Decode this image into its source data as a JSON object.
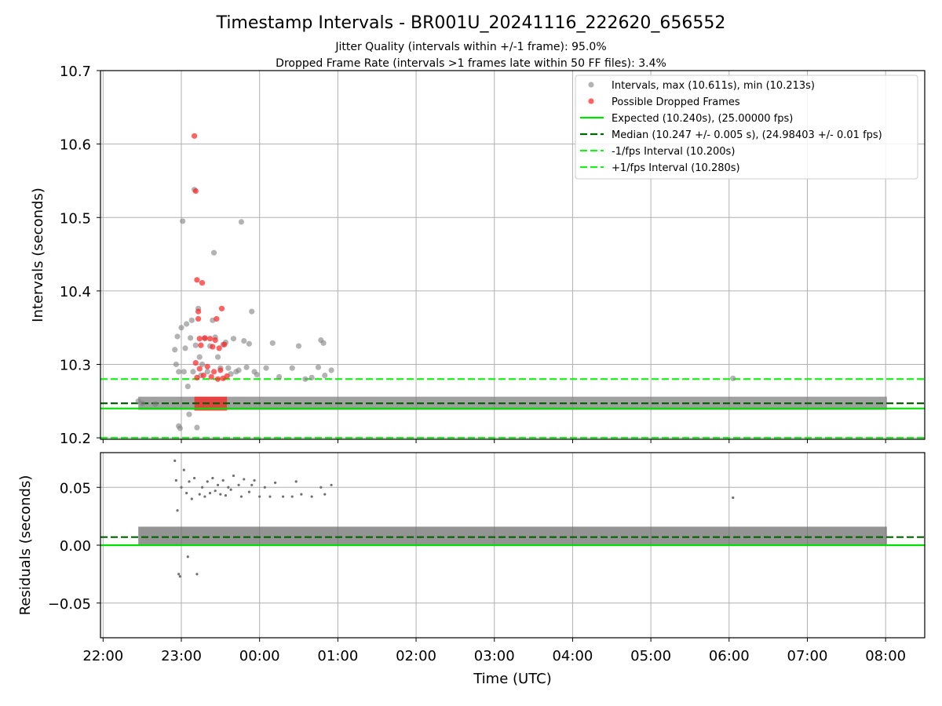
{
  "chart_data": [
    {
      "type": "scatter",
      "panel": "top",
      "title": "Timestamp Intervals - BR001U_20241116_222620_656552",
      "subtitles": [
        "Jitter Quality (intervals within +/-1 frame): 95.0%",
        "Dropped Frame Rate (intervals >1 frames late within 50 FF files): 3.4%"
      ],
      "ylabel": "Intervals (seconds)",
      "ylim": [
        10.198,
        10.7
      ],
      "xlim": [
        "21:58",
        "08:30"
      ],
      "yticks": [
        "10.2",
        "10.3",
        "10.4",
        "10.5",
        "10.6",
        "10.7"
      ],
      "grid": true,
      "legend_position": "top-right",
      "legend": [
        "Intervals, max (10.611s), min (10.213s)",
        "Possible Dropped Frames",
        "Expected (10.240s), (25.00000 fps)",
        "Median (10.247 +/- 0.005 s), (24.98403 +/- 0.01 fps)",
        "-1/fps Interval (10.200s)",
        "+1/fps Interval (10.280s)"
      ],
      "reference_lines": [
        {
          "name": "Expected",
          "y": 10.24,
          "color": "#00e000",
          "style": "solid"
        },
        {
          "name": "Median",
          "y": 10.247,
          "color": "#006400",
          "style": "dashed"
        },
        {
          "name": "-1/fps Interval",
          "y": 10.2,
          "color": "#1cf01c",
          "style": "dashed"
        },
        {
          "name": "+1/fps Interval",
          "y": 10.28,
          "color": "#1cf01c",
          "style": "dashed"
        }
      ],
      "series": [
        {
          "name": "Intervals",
          "color": "#808080",
          "band": {
            "x_start": "22:27",
            "x_end": "08:01",
            "y_low": 10.238,
            "y_high": 10.256
          },
          "points": [
            {
              "x": "22:27",
              "y": 10.25
            },
            {
              "x": "22:30",
              "y": 10.247
            },
            {
              "x": "22:40",
              "y": 10.246
            },
            {
              "x": "22:55",
              "y": 10.32
            },
            {
              "x": "22:56",
              "y": 10.3
            },
            {
              "x": "22:57",
              "y": 10.338
            },
            {
              "x": "22:58",
              "y": 10.29
            },
            {
              "x": "22:58",
              "y": 10.216
            },
            {
              "x": "22:59",
              "y": 10.213
            },
            {
              "x": "23:00",
              "y": 10.35
            },
            {
              "x": "23:01",
              "y": 10.495
            },
            {
              "x": "23:02",
              "y": 10.29
            },
            {
              "x": "23:03",
              "y": 10.322
            },
            {
              "x": "23:04",
              "y": 10.355
            },
            {
              "x": "23:05",
              "y": 10.27
            },
            {
              "x": "23:06",
              "y": 10.232
            },
            {
              "x": "23:07",
              "y": 10.336
            },
            {
              "x": "23:08",
              "y": 10.36
            },
            {
              "x": "23:09",
              "y": 10.29
            },
            {
              "x": "23:10",
              "y": 10.538
            },
            {
              "x": "23:11",
              "y": 10.326
            },
            {
              "x": "23:12",
              "y": 10.214
            },
            {
              "x": "23:13",
              "y": 10.376
            },
            {
              "x": "23:14",
              "y": 10.31
            },
            {
              "x": "23:15",
              "y": 10.285
            },
            {
              "x": "23:16",
              "y": 10.3
            },
            {
              "x": "23:18",
              "y": 10.335
            },
            {
              "x": "23:20",
              "y": 10.29
            },
            {
              "x": "23:22",
              "y": 10.325
            },
            {
              "x": "23:24",
              "y": 10.36
            },
            {
              "x": "23:25",
              "y": 10.452
            },
            {
              "x": "23:26",
              "y": 10.337
            },
            {
              "x": "23:28",
              "y": 10.31
            },
            {
              "x": "23:30",
              "y": 10.295
            },
            {
              "x": "23:32",
              "y": 10.327
            },
            {
              "x": "23:34",
              "y": 10.33
            },
            {
              "x": "23:36",
              "y": 10.295
            },
            {
              "x": "23:38",
              "y": 10.287
            },
            {
              "x": "23:40",
              "y": 10.335
            },
            {
              "x": "23:42",
              "y": 10.29
            },
            {
              "x": "23:44",
              "y": 10.292
            },
            {
              "x": "23:46",
              "y": 10.494
            },
            {
              "x": "23:48",
              "y": 10.332
            },
            {
              "x": "23:50",
              "y": 10.296
            },
            {
              "x": "23:52",
              "y": 10.328
            },
            {
              "x": "23:54",
              "y": 10.372
            },
            {
              "x": "23:56",
              "y": 10.29
            },
            {
              "x": "23:58",
              "y": 10.286
            },
            {
              "x": "00:05",
              "y": 10.295
            },
            {
              "x": "00:10",
              "y": 10.329
            },
            {
              "x": "00:15",
              "y": 10.283
            },
            {
              "x": "00:25",
              "y": 10.295
            },
            {
              "x": "00:30",
              "y": 10.325
            },
            {
              "x": "00:35",
              "y": 10.28
            },
            {
              "x": "00:40",
              "y": 10.282
            },
            {
              "x": "00:45",
              "y": 10.296
            },
            {
              "x": "00:47",
              "y": 10.333
            },
            {
              "x": "00:49",
              "y": 10.329
            },
            {
              "x": "00:50",
              "y": 10.285
            },
            {
              "x": "00:55",
              "y": 10.292
            },
            {
              "x": "06:03",
              "y": 10.281
            }
          ]
        },
        {
          "name": "Possible Dropped Frames",
          "color": "#ff2020",
          "band": {
            "x_start": "23:10",
            "x_end": "23:35",
            "y_low": 10.237,
            "y_high": 10.256
          },
          "points": [
            {
              "x": "23:10",
              "y": 10.611
            },
            {
              "x": "23:11",
              "y": 10.536
            },
            {
              "x": "23:12",
              "y": 10.415
            },
            {
              "x": "23:16",
              "y": 10.411
            },
            {
              "x": "23:13",
              "y": 10.372
            },
            {
              "x": "23:13",
              "y": 10.362
            },
            {
              "x": "23:27",
              "y": 10.362
            },
            {
              "x": "23:31",
              "y": 10.376
            },
            {
              "x": "23:14",
              "y": 10.335
            },
            {
              "x": "23:18",
              "y": 10.336
            },
            {
              "x": "23:22",
              "y": 10.335
            },
            {
              "x": "23:26",
              "y": 10.333
            },
            {
              "x": "23:33",
              "y": 10.327
            },
            {
              "x": "23:15",
              "y": 10.326
            },
            {
              "x": "23:24",
              "y": 10.324
            },
            {
              "x": "23:29",
              "y": 10.322
            },
            {
              "x": "23:11",
              "y": 10.302
            },
            {
              "x": "23:14",
              "y": 10.294
            },
            {
              "x": "23:20",
              "y": 10.297
            },
            {
              "x": "23:25",
              "y": 10.29
            },
            {
              "x": "23:30",
              "y": 10.292
            },
            {
              "x": "23:35",
              "y": 10.284
            },
            {
              "x": "23:12",
              "y": 10.282
            },
            {
              "x": "23:17",
              "y": 10.285
            },
            {
              "x": "23:23",
              "y": 10.283
            },
            {
              "x": "23:28",
              "y": 10.28
            },
            {
              "x": "23:32",
              "y": 10.281
            }
          ]
        }
      ]
    },
    {
      "type": "scatter",
      "panel": "bottom",
      "xlabel": "Time (UTC)",
      "ylabel": "Residuals (seconds)",
      "ylim": [
        -0.08,
        0.08
      ],
      "xlim": [
        "21:58",
        "08:30"
      ],
      "yticks": [
        "−0.05",
        "0.00",
        "0.05"
      ],
      "xticks": [
        "22:00",
        "23:00",
        "00:00",
        "01:00",
        "02:00",
        "03:00",
        "04:00",
        "05:00",
        "06:00",
        "07:00",
        "08:00"
      ],
      "grid": true,
      "reference_lines": [
        {
          "name": "Zero",
          "y": 0.0,
          "color": "#00e000",
          "style": "solid"
        },
        {
          "name": "Median offset",
          "y": 0.007,
          "color": "#006400",
          "style": "dashed"
        }
      ],
      "series": [
        {
          "name": "Residuals",
          "color": "#707070",
          "band": {
            "x_start": "22:27",
            "x_end": "08:01",
            "y_low": 0.0,
            "y_high": 0.016
          },
          "points": [
            {
              "x": "22:55",
              "y": 0.073
            },
            {
              "x": "22:56",
              "y": 0.056
            },
            {
              "x": "22:57",
              "y": 0.03
            },
            {
              "x": "22:58",
              "y": -0.025
            },
            {
              "x": "22:59",
              "y": -0.027
            },
            {
              "x": "23:00",
              "y": 0.05
            },
            {
              "x": "23:02",
              "y": 0.065
            },
            {
              "x": "23:04",
              "y": 0.045
            },
            {
              "x": "23:05",
              "y": -0.01
            },
            {
              "x": "23:06",
              "y": 0.055
            },
            {
              "x": "23:08",
              "y": 0.04
            },
            {
              "x": "23:10",
              "y": 0.058
            },
            {
              "x": "23:12",
              "y": -0.025
            },
            {
              "x": "23:14",
              "y": 0.044
            },
            {
              "x": "23:16",
              "y": 0.05
            },
            {
              "x": "23:18",
              "y": 0.042
            },
            {
              "x": "23:20",
              "y": 0.055
            },
            {
              "x": "23:22",
              "y": 0.045
            },
            {
              "x": "23:24",
              "y": 0.058
            },
            {
              "x": "23:26",
              "y": 0.047
            },
            {
              "x": "23:28",
              "y": 0.052
            },
            {
              "x": "23:30",
              "y": 0.044
            },
            {
              "x": "23:32",
              "y": 0.056
            },
            {
              "x": "23:34",
              "y": 0.043
            },
            {
              "x": "23:36",
              "y": 0.05
            },
            {
              "x": "23:38",
              "y": 0.048
            },
            {
              "x": "23:40",
              "y": 0.06
            },
            {
              "x": "23:44",
              "y": 0.052
            },
            {
              "x": "23:46",
              "y": 0.042
            },
            {
              "x": "23:48",
              "y": 0.057
            },
            {
              "x": "23:52",
              "y": 0.046
            },
            {
              "x": "23:54",
              "y": 0.052
            },
            {
              "x": "23:56",
              "y": 0.056
            },
            {
              "x": "00:00",
              "y": 0.042
            },
            {
              "x": "00:04",
              "y": 0.05
            },
            {
              "x": "00:08",
              "y": 0.042
            },
            {
              "x": "00:12",
              "y": 0.054
            },
            {
              "x": "00:18",
              "y": 0.042
            },
            {
              "x": "00:25",
              "y": 0.042
            },
            {
              "x": "00:28",
              "y": 0.055
            },
            {
              "x": "00:32",
              "y": 0.044
            },
            {
              "x": "00:40",
              "y": 0.042
            },
            {
              "x": "00:47",
              "y": 0.05
            },
            {
              "x": "00:50",
              "y": 0.044
            },
            {
              "x": "00:55",
              "y": 0.052
            },
            {
              "x": "06:03",
              "y": 0.041
            }
          ]
        }
      ]
    }
  ]
}
